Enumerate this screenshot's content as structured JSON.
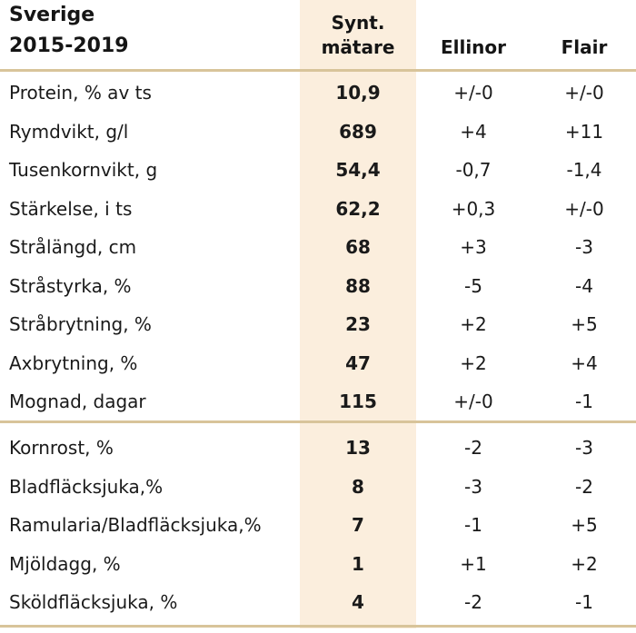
{
  "header": {
    "region": "Sverige",
    "period": "2015-2019",
    "col_synt_line1": "Synt.",
    "col_synt_line2": "mätare",
    "col_ellinor": "Ellinor",
    "col_flair": "Flair"
  },
  "colors": {
    "highlight_column": "#fbeedd",
    "rule": "#d8c49a"
  },
  "rows_group1": [
    {
      "label": "Protein, % av ts",
      "value": "10,9",
      "ellinor": "+/-0",
      "flair": "+/-0"
    },
    {
      "label": "Rymdvikt, g/l",
      "value": "689",
      "ellinor": "+4",
      "flair": "+11"
    },
    {
      "label": "Tusenkornvikt, g",
      "value": "54,4",
      "ellinor": "-0,7",
      "flair": "-1,4"
    },
    {
      "label": "Stärkelse, i ts",
      "value": "62,2",
      "ellinor": "+0,3",
      "flair": "+/-0"
    },
    {
      "label": "Strålängd, cm",
      "value": "68",
      "ellinor": "+3",
      "flair": "-3"
    },
    {
      "label": "Stråstyrka, %",
      "value": "88",
      "ellinor": "-5",
      "flair": "-4"
    },
    {
      "label": "Stråbrytning, %",
      "value": "23",
      "ellinor": "+2",
      "flair": "+5"
    },
    {
      "label": "Axbrytning, %",
      "value": "47",
      "ellinor": "+2",
      "flair": "+4"
    },
    {
      "label": "Mognad, dagar",
      "value": "115",
      "ellinor": "+/-0",
      "flair": "-1"
    }
  ],
  "rows_group2": [
    {
      "label": "Kornrost, %",
      "value": "13",
      "ellinor": "-2",
      "flair": "-3"
    },
    {
      "label": "Bladfläcksjuka,%",
      "value": "8",
      "ellinor": "-3",
      "flair": "-2"
    },
    {
      "label": "Ramularia/Bladfläcksjuka,%",
      "value": "7",
      "ellinor": "-1",
      "flair": "+5"
    },
    {
      "label": "Mjöldagg, %",
      "value": "1",
      "ellinor": "+1",
      "flair": "+2"
    },
    {
      "label": "Sköldfläcksjuka, %",
      "value": "4",
      "ellinor": "-2",
      "flair": "-1"
    }
  ]
}
